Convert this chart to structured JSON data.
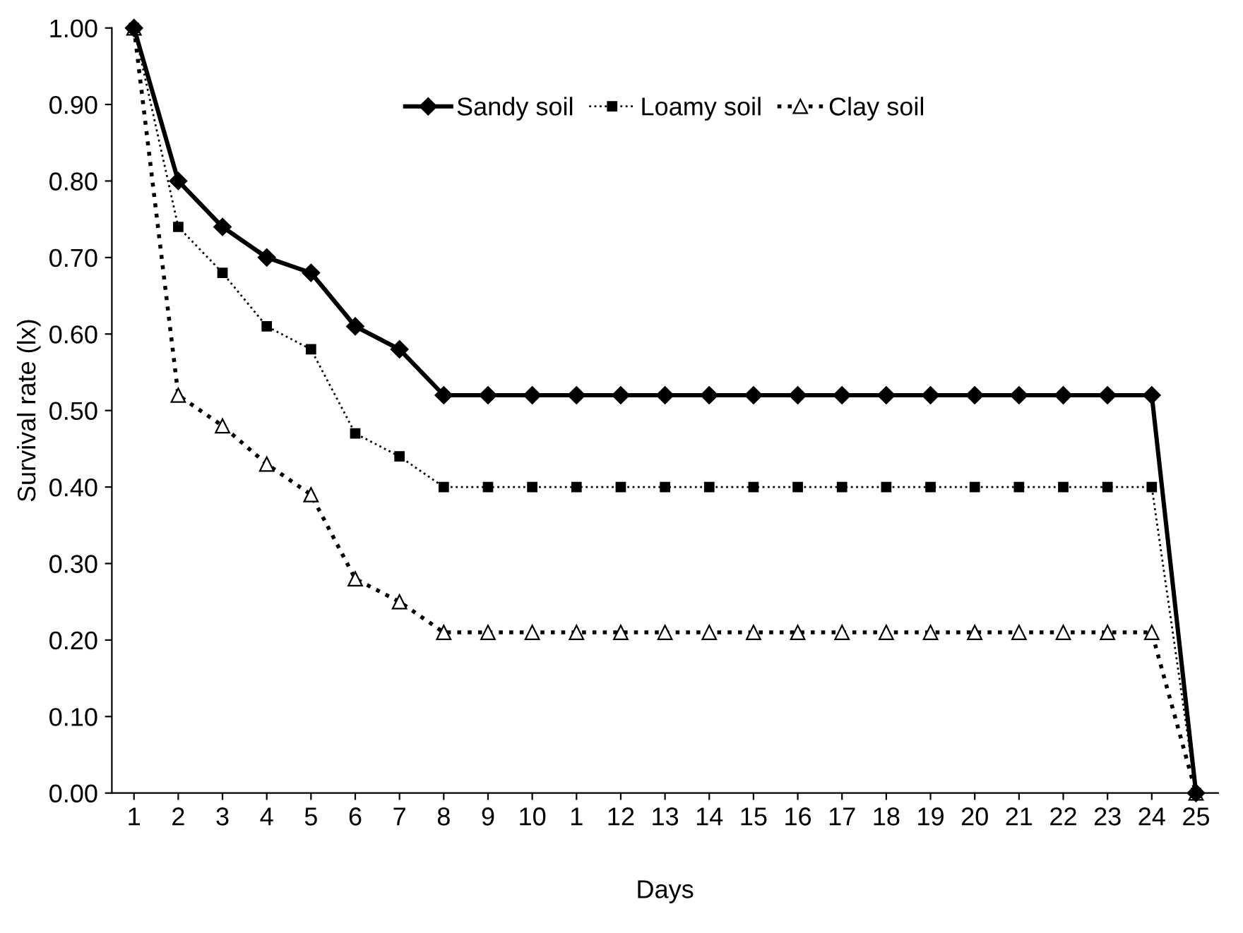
{
  "chart_data": {
    "type": "line",
    "xlabel": "Days",
    "ylabel": "Survival rate (lx)",
    "categories": [
      "1",
      "2",
      "3",
      "4",
      "5",
      "6",
      "7",
      "8",
      "9",
      "10",
      "1",
      "12",
      "13",
      "14",
      "15",
      "16",
      "17",
      "18",
      "19",
      "20",
      "21",
      "22",
      "23",
      "24",
      "25"
    ],
    "series": [
      {
        "name": "Sandy soil",
        "color": "#000000",
        "marker": "diamond",
        "line_style": "solid",
        "values": [
          1.0,
          0.8,
          0.74,
          0.7,
          0.68,
          0.61,
          0.58,
          0.52,
          0.52,
          0.52,
          0.52,
          0.52,
          0.52,
          0.52,
          0.52,
          0.52,
          0.52,
          0.52,
          0.52,
          0.52,
          0.52,
          0.52,
          0.52,
          0.52,
          0.0
        ]
      },
      {
        "name": "Loamy soil",
        "color": "#000000",
        "marker": "square",
        "line_style": "dotted",
        "values": [
          1.0,
          0.74,
          0.68,
          0.61,
          0.58,
          0.47,
          0.44,
          0.4,
          0.4,
          0.4,
          0.4,
          0.4,
          0.4,
          0.4,
          0.4,
          0.4,
          0.4,
          0.4,
          0.4,
          0.4,
          0.4,
          0.4,
          0.4,
          0.4,
          0.0
        ]
      },
      {
        "name": "Clay soil",
        "color": "#000000",
        "marker": "triangle",
        "line_style": "dotted",
        "values": [
          1.0,
          0.52,
          0.48,
          0.43,
          0.39,
          0.28,
          0.25,
          0.21,
          0.21,
          0.21,
          0.21,
          0.21,
          0.21,
          0.21,
          0.21,
          0.21,
          0.21,
          0.21,
          0.21,
          0.21,
          0.21,
          0.21,
          0.21,
          0.21,
          0.0
        ]
      }
    ],
    "ylim": [
      0,
      1
    ],
    "yticks": [
      {
        "value": 0,
        "label": "0.00"
      },
      {
        "value": 0.1,
        "label": "0.10"
      },
      {
        "value": 0.2,
        "label": "0.20"
      },
      {
        "value": 0.3,
        "label": "0.30"
      },
      {
        "value": 0.4,
        "label": "0.40"
      },
      {
        "value": 0.5,
        "label": "0.50"
      },
      {
        "value": 0.6,
        "label": "0.60"
      },
      {
        "value": 0.7,
        "label": "0.70"
      },
      {
        "value": 0.8,
        "label": "0.80"
      },
      {
        "value": 0.9,
        "label": "0.90"
      },
      {
        "value": 1,
        "label": "1.00"
      }
    ],
    "grid": false,
    "legend": "top"
  }
}
